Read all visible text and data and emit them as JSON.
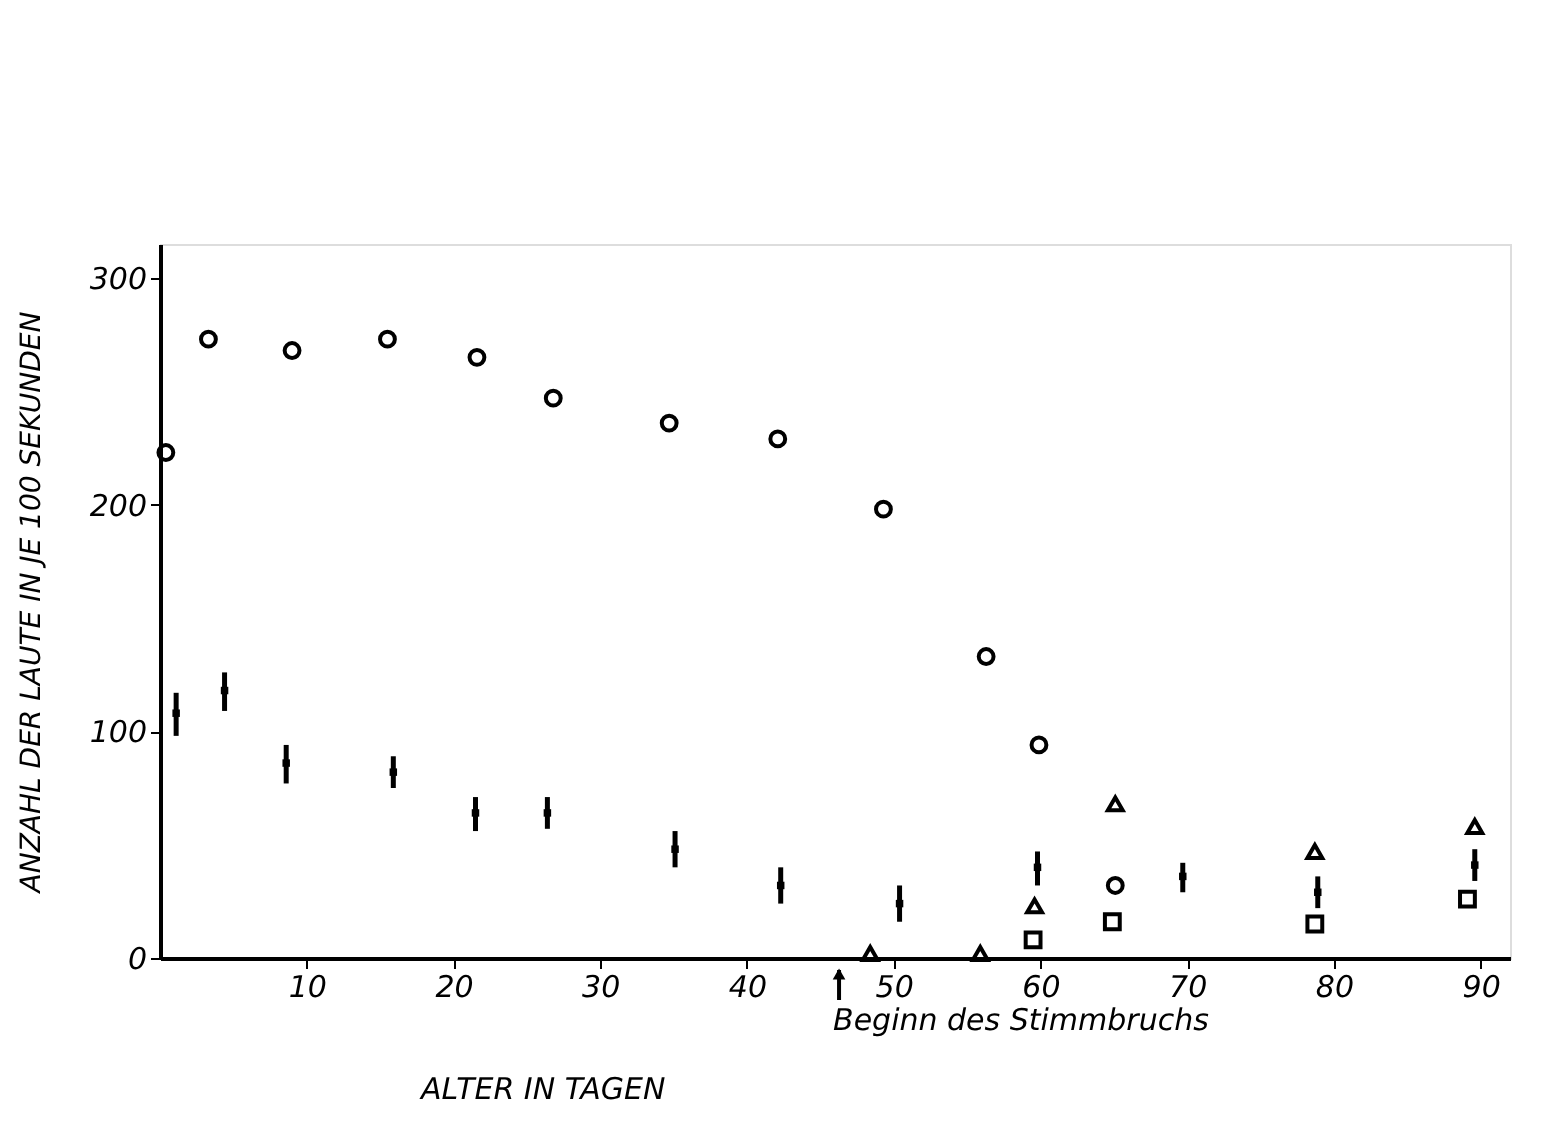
{
  "chart_data": {
    "type": "scatter",
    "xlabel": "ALTER IN TAGEN",
    "ylabel": "ANZAHL DER LAUTE IN JE 100 SEKUNDEN",
    "xlim": [
      0,
      92
    ],
    "ylim": [
      0,
      315
    ],
    "xticks": [
      10,
      20,
      30,
      40,
      50,
      60,
      70,
      80,
      90
    ],
    "yticks": [
      0,
      100,
      200,
      300
    ],
    "grid": false,
    "series": [
      {
        "color": "#000000",
        "marker": "circle",
        "x": [
          0.4,
          3.3,
          9,
          15.5,
          21.6,
          26.8,
          34.7,
          42.1,
          49.3,
          56.3,
          59.9,
          65.1
        ],
        "values": [
          223,
          273,
          268,
          273,
          265,
          247,
          236,
          229,
          198,
          133,
          94,
          32
        ]
      },
      {
        "color": "#000000",
        "marker": "square",
        "x": [
          1.1,
          4.4,
          8.6,
          15.9,
          21.5,
          26.4,
          35.1,
          42.3,
          50.4,
          59.8,
          69.7,
          78.9,
          89.6
        ],
        "values": [
          108,
          118,
          86,
          82,
          64,
          64,
          48,
          32,
          24,
          40,
          36,
          29,
          41
        ],
        "errors": [
          [
            98,
            117
          ],
          [
            109,
            126
          ],
          [
            77,
            94
          ],
          [
            75,
            89
          ],
          [
            56,
            71
          ],
          [
            57,
            71
          ],
          [
            40,
            56
          ],
          [
            24,
            40
          ],
          [
            16,
            32
          ],
          [
            32,
            47
          ],
          [
            29,
            42
          ],
          [
            22,
            36
          ],
          [
            34,
            48
          ]
        ]
      },
      {
        "color": "#000000",
        "marker": "triangle",
        "x": [
          48.4,
          55.9,
          59.6,
          65.1,
          78.7,
          89.6
        ],
        "values": [
          2,
          2,
          23,
          68,
          47,
          58
        ]
      },
      {
        "color": "#000000",
        "marker": "square",
        "x": [
          59.5,
          64.9,
          78.7,
          89.1
        ],
        "values": [
          8,
          16,
          15,
          26
        ]
      }
    ],
    "annotations": [
      "Beginn des Stimmbruchs"
    ]
  }
}
